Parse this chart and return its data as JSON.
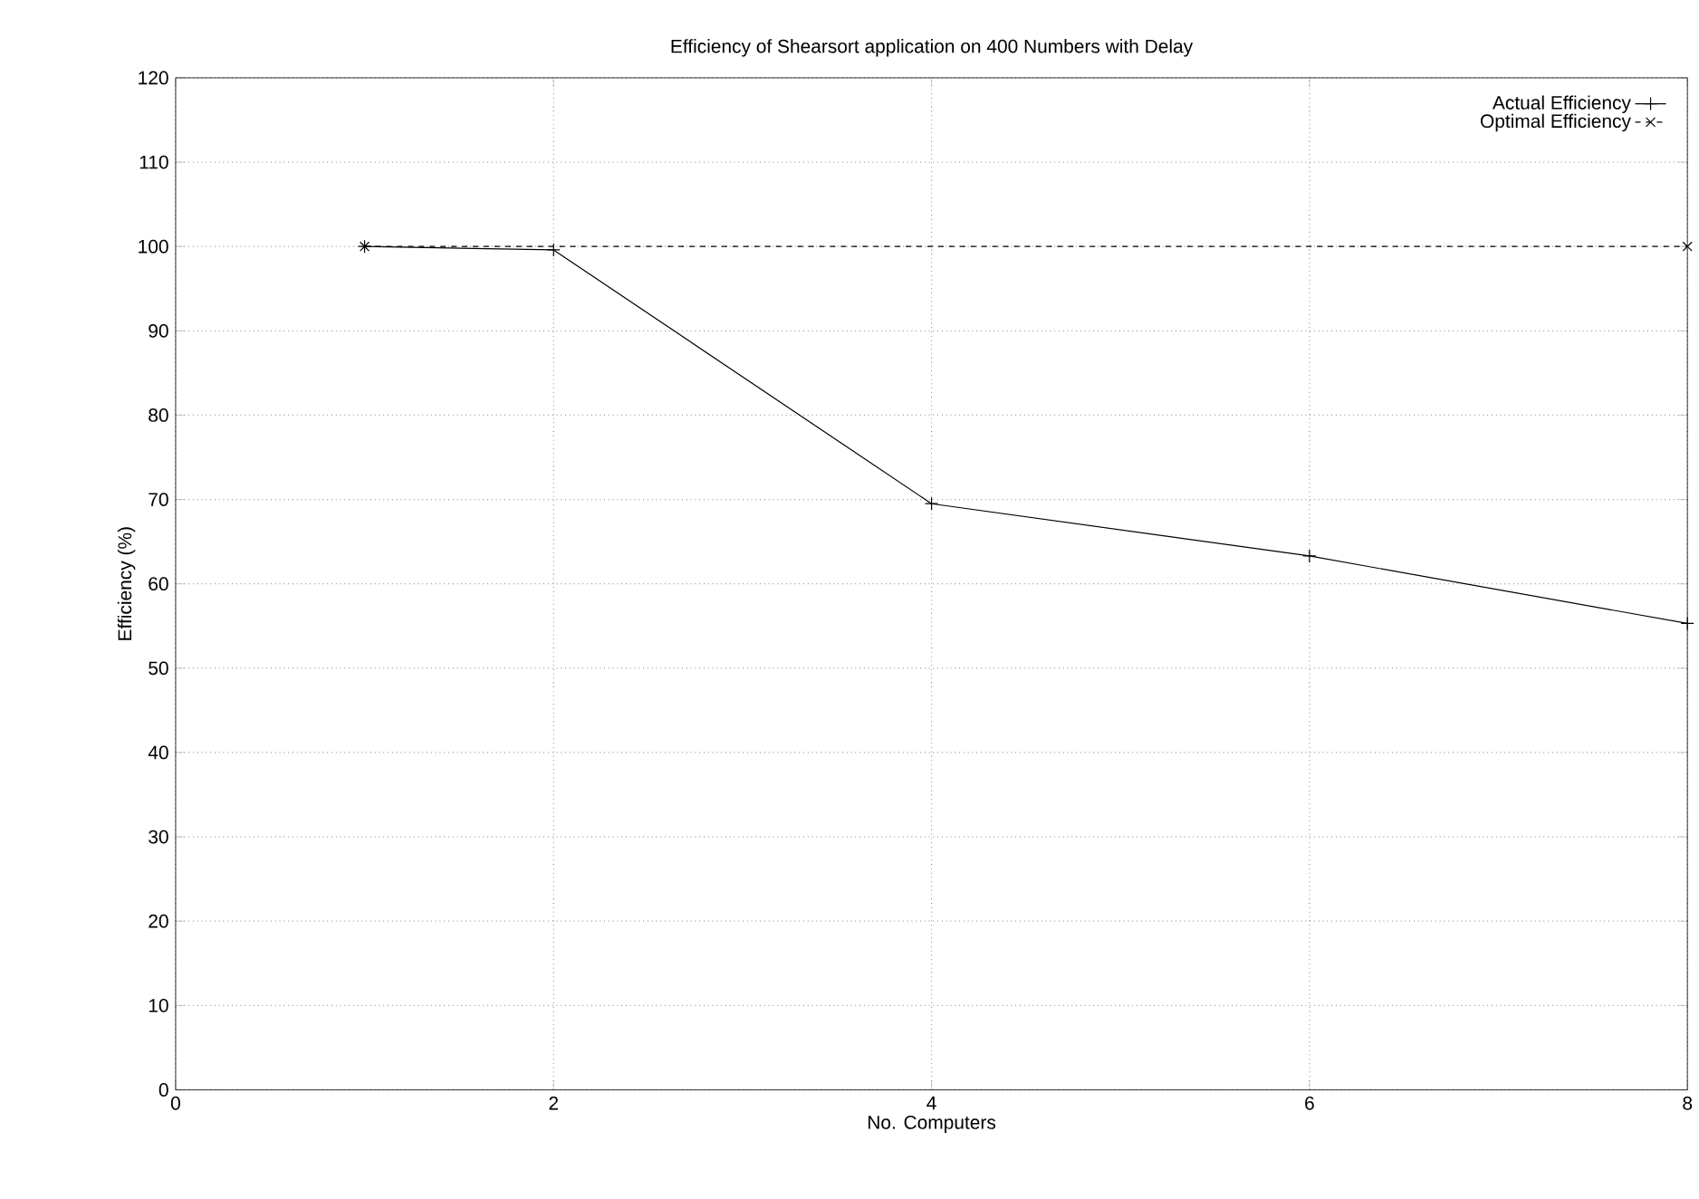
{
  "chart_data": {
    "type": "line",
    "title": "Efficiency of Shearsort application on 400 Numbers with Delay",
    "xlabel": "No. Computers",
    "ylabel": "Efficiency (%)",
    "series": [
      {
        "name": "Actual Efficiency",
        "color": "#000000",
        "x": [
          1,
          2,
          4,
          6,
          8
        ],
        "values": [
          100,
          99.6,
          69.5,
          63.3,
          55.3
        ],
        "marker": "plus",
        "line_style": "solid"
      },
      {
        "name": "Optimal Efficiency",
        "color": "#000000",
        "x": [
          1,
          8
        ],
        "values": [
          100,
          100
        ],
        "marker": "cross",
        "line_style": "dashed"
      }
    ],
    "xlim": [
      0,
      8
    ],
    "xticks": [
      0,
      2,
      4,
      6,
      8
    ],
    "ylim": [
      0,
      120
    ],
    "yticks": [
      0,
      10,
      20,
      30,
      40,
      50,
      60,
      70,
      80,
      90,
      100,
      110,
      120
    ],
    "grid": true,
    "legend": "top right"
  }
}
